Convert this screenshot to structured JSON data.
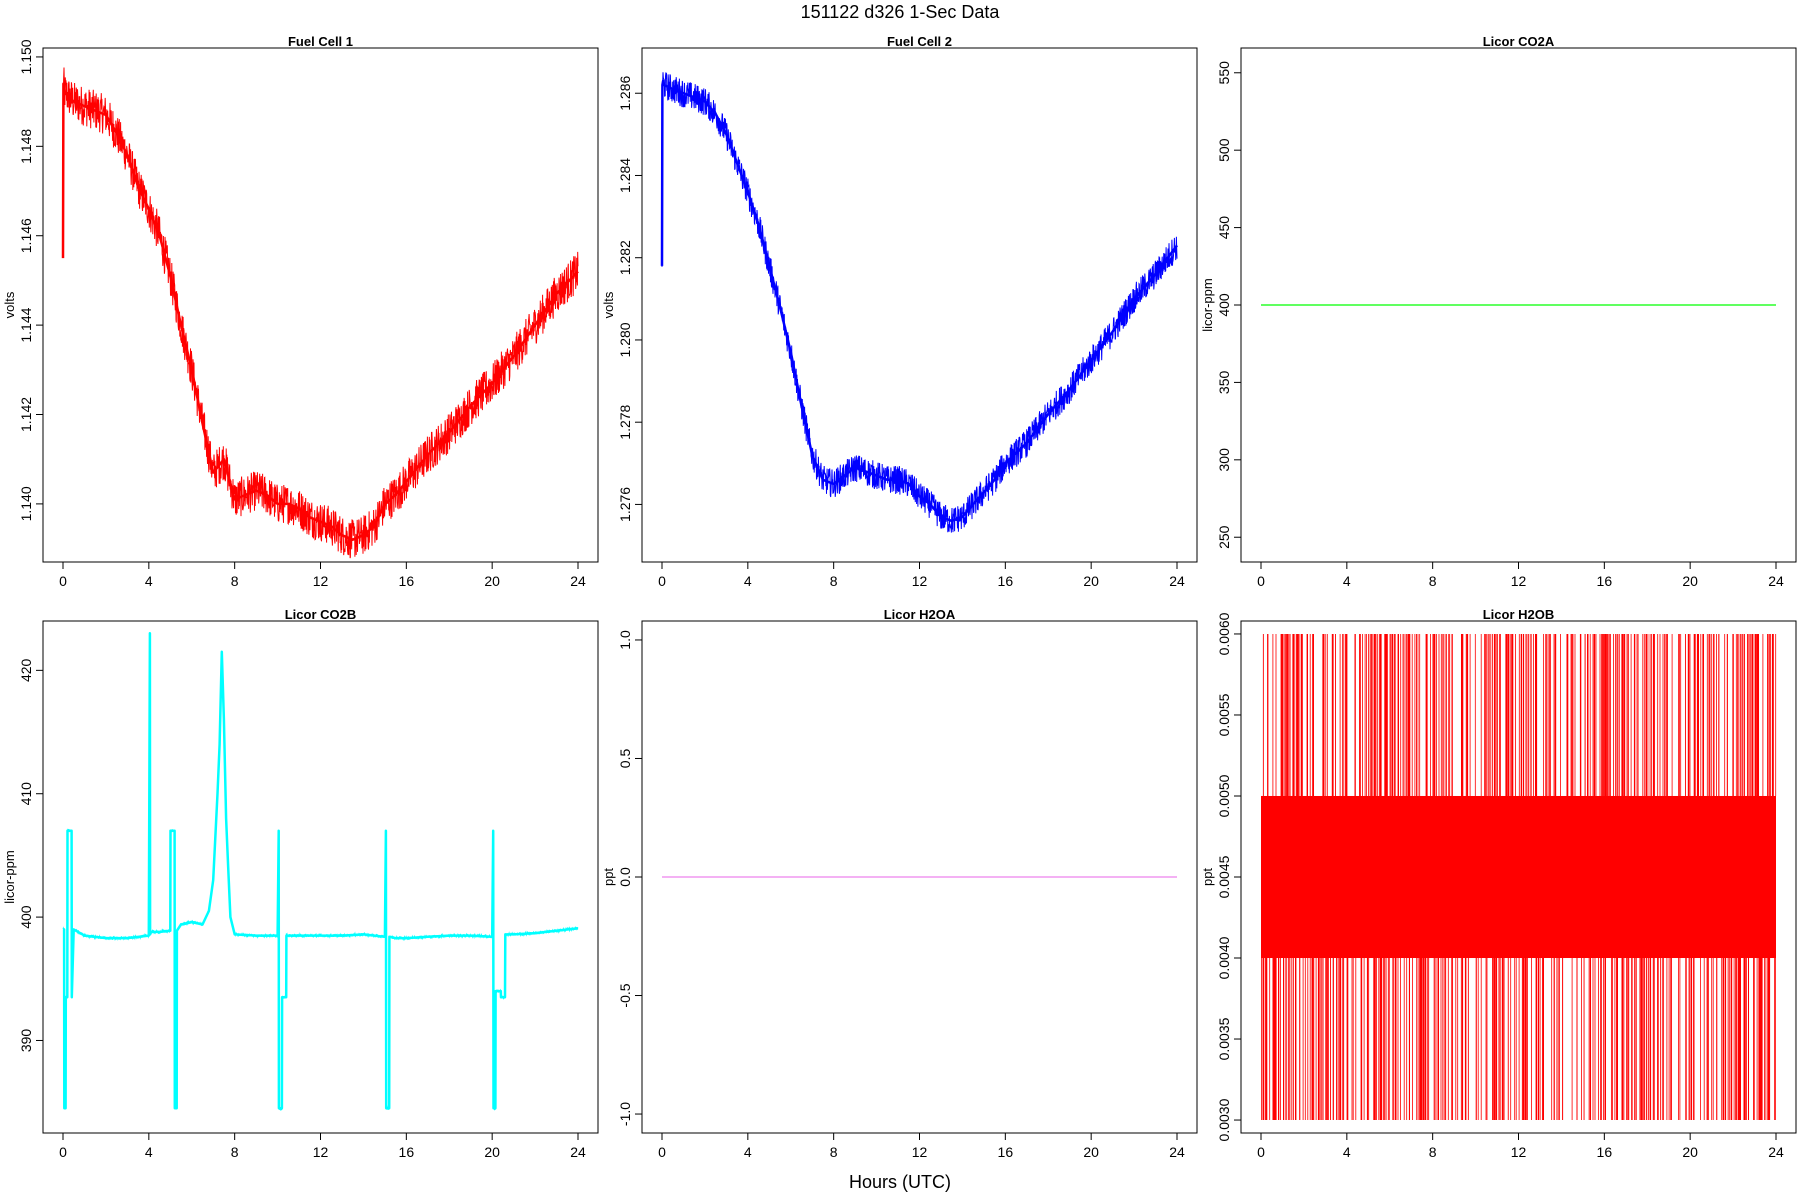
{
  "figure": {
    "title": "151122   d326   1-Sec Data",
    "xlabel": "Hours (UTC)"
  },
  "chart_data": [
    {
      "type": "line",
      "title": "Fuel Cell 1",
      "ylabel": "volts",
      "color": "#ff0000",
      "xlim": [
        0,
        24
      ],
      "ylim": [
        1.1387,
        1.1502
      ],
      "xticks": [
        0,
        4,
        8,
        12,
        16,
        20,
        24
      ],
      "yticks": [
        1.14,
        1.142,
        1.144,
        1.146,
        1.148,
        1.15
      ],
      "ytick_labels": [
        "1.140",
        "1.142",
        "1.144",
        "1.146",
        "1.148",
        "1.150"
      ],
      "noise": 0.00045,
      "series": [
        {
          "x": [
            0,
            0.02,
            0.05,
            0.1,
            0.5,
            1,
            1.5,
            2,
            2.5,
            3,
            3.5,
            4,
            4.5,
            5,
            5.5,
            6,
            6.5,
            7,
            7.5,
            8,
            8.5,
            9,
            9.5,
            10,
            10.5,
            11,
            11.5,
            12,
            12.5,
            13,
            13.5,
            14,
            14.5,
            15,
            15.5,
            16,
            17,
            18,
            19,
            20,
            21,
            22,
            23,
            24
          ],
          "y": [
            1.1455,
            1.1494,
            1.1493,
            1.1492,
            1.149,
            1.1489,
            1.1488,
            1.1487,
            1.1483,
            1.1478,
            1.1471,
            1.1466,
            1.146,
            1.1451,
            1.144,
            1.143,
            1.1418,
            1.1407,
            1.141,
            1.1401,
            1.1402,
            1.1403,
            1.1402,
            1.14,
            1.14,
            1.1399,
            1.1397,
            1.1396,
            1.1395,
            1.1393,
            1.1392,
            1.1393,
            1.1395,
            1.14,
            1.1402,
            1.1405,
            1.1411,
            1.1416,
            1.1422,
            1.1427,
            1.1433,
            1.144,
            1.1447,
            1.1452
          ]
        }
      ]
    },
    {
      "type": "line",
      "title": "Fuel Cell 2",
      "ylabel": "volts",
      "color": "#0000ff",
      "xlim": [
        0,
        24
      ],
      "ylim": [
        1.2746,
        1.2871
      ],
      "xticks": [
        0,
        4,
        8,
        12,
        16,
        20,
        24
      ],
      "yticks": [
        1.276,
        1.278,
        1.28,
        1.282,
        1.284,
        1.286
      ],
      "ytick_labels": [
        "1.276",
        "1.278",
        "1.280",
        "1.282",
        "1.284",
        "1.286"
      ],
      "noise": 0.00035,
      "series": [
        {
          "x": [
            0,
            0.02,
            0.05,
            0.1,
            0.5,
            1,
            1.5,
            2,
            2.5,
            3,
            3.5,
            4,
            4.5,
            5,
            5.5,
            6,
            6.5,
            7,
            7.5,
            8,
            8.5,
            9,
            9.5,
            10,
            10.5,
            11,
            11.5,
            12,
            12.5,
            13,
            13.5,
            14,
            14.5,
            15,
            15.5,
            16,
            17,
            18,
            19,
            20,
            21,
            22,
            23,
            24
          ],
          "y": [
            1.2818,
            1.2862,
            1.2863,
            1.2862,
            1.2861,
            1.286,
            1.2859,
            1.2858,
            1.2855,
            1.285,
            1.2843,
            1.2836,
            1.2828,
            1.2818,
            1.2808,
            1.2797,
            1.2784,
            1.2772,
            1.2766,
            1.2765,
            1.2767,
            1.2769,
            1.2768,
            1.2767,
            1.2766,
            1.2766,
            1.2765,
            1.2762,
            1.276,
            1.2757,
            1.2756,
            1.2757,
            1.276,
            1.2763,
            1.2766,
            1.277,
            1.2775,
            1.2782,
            1.2788,
            1.2795,
            1.2802,
            1.281,
            1.2816,
            1.2823
          ]
        }
      ]
    },
    {
      "type": "line",
      "title": "Licor CO2A",
      "ylabel": "licor-ppm",
      "color": "#00ff00",
      "xlim": [
        0,
        24
      ],
      "ylim": [
        234,
        566
      ],
      "xticks": [
        0,
        4,
        8,
        12,
        16,
        20,
        24
      ],
      "yticks": [
        250,
        300,
        350,
        400,
        450,
        500,
        550
      ],
      "ytick_labels": [
        "250",
        "300",
        "350",
        "400",
        "450",
        "500",
        "550"
      ],
      "noise": 0,
      "series": [
        {
          "x": [
            0,
            24
          ],
          "y": [
            400,
            400
          ]
        }
      ]
    },
    {
      "type": "line",
      "title": "Licor CO2B",
      "ylabel": "licor-ppm",
      "color": "#00ffff",
      "xlim": [
        0,
        24
      ],
      "ylim": [
        382.5,
        424
      ],
      "xticks": [
        0,
        4,
        8,
        12,
        16,
        20,
        24
      ],
      "yticks": [
        390,
        400,
        410,
        420
      ],
      "ytick_labels": [
        "390",
        "400",
        "410",
        "420"
      ],
      "noise": 0.12,
      "series": [
        {
          "x": [
            0,
            0.05,
            0.06,
            0.12,
            0.13,
            0.2,
            0.21,
            0.4,
            0.41,
            0.5,
            1,
            2,
            3,
            4,
            4.05,
            4.06,
            4.1,
            4.11,
            4.5,
            5,
            5.01,
            5.2,
            5.21,
            5.3,
            5.31,
            5.5,
            6,
            6.5,
            6.8,
            7,
            7.2,
            7.3,
            7.4,
            7.5,
            7.6,
            7.7,
            7.8,
            8,
            9,
            10,
            10.05,
            10.06,
            10.2,
            10.21,
            10.4,
            10.41,
            11,
            12,
            13,
            14,
            15,
            15.05,
            15.06,
            15.2,
            15.21,
            15.5,
            16,
            17,
            18,
            19,
            20,
            20.05,
            20.06,
            20.15,
            20.16,
            20.4,
            20.41,
            20.6,
            20.61,
            21,
            22,
            23,
            24
          ],
          "y": [
            399,
            399,
            384.5,
            384.5,
            393.5,
            393.5,
            407,
            407,
            393.5,
            399,
            398.5,
            398.3,
            398.3,
            398.5,
            423,
            398.6,
            398.8,
            398.8,
            398.8,
            398.9,
            407,
            407,
            384.5,
            384.5,
            398.9,
            399.4,
            399.6,
            399.4,
            400.5,
            403,
            410,
            414,
            421.5,
            416,
            408,
            404,
            400,
            398.6,
            398.5,
            398.5,
            407,
            384.5,
            384.5,
            393.5,
            393.5,
            398.5,
            398.5,
            398.5,
            398.5,
            398.6,
            398.4,
            407,
            384.5,
            384.5,
            398.4,
            398.3,
            398.3,
            398.4,
            398.5,
            398.5,
            398.4,
            407,
            384.5,
            384.5,
            394,
            394,
            393.5,
            393.5,
            398.6,
            398.6,
            398.7,
            398.9,
            399.1
          ]
        }
      ]
    },
    {
      "type": "line",
      "title": "Licor H2OA",
      "ylabel": "ppt",
      "color": "#ee82ee",
      "xlim": [
        0,
        24
      ],
      "ylim": [
        -1.08,
        1.08
      ],
      "xticks": [
        0,
        4,
        8,
        12,
        16,
        20,
        24
      ],
      "yticks": [
        -1.0,
        -0.5,
        0.0,
        0.5,
        1.0
      ],
      "ytick_labels": [
        "-1.0",
        "-0.5",
        "0.0",
        "0.5",
        "1.0"
      ],
      "noise": 0,
      "series": [
        {
          "x": [
            0,
            24
          ],
          "y": [
            0,
            0
          ]
        }
      ]
    },
    {
      "type": "area",
      "title": "Licor H2OB",
      "ylabel": "ppt",
      "color": "#ff0000",
      "xlim": [
        0,
        24
      ],
      "ylim": [
        0.00292,
        0.00608
      ],
      "xticks": [
        0,
        4,
        8,
        12,
        16,
        20,
        24
      ],
      "yticks": [
        0.003,
        0.0035,
        0.004,
        0.0045,
        0.005,
        0.0055,
        0.006
      ],
      "ytick_labels": [
        "0.0030",
        "0.0035",
        "0.0040",
        "0.0045",
        "0.0050",
        "0.0055",
        "0.0060"
      ],
      "band": {
        "low": 0.004,
        "high": 0.005,
        "x": [
          0,
          24
        ]
      },
      "spike_range": {
        "min": 0.003,
        "max": 0.006
      }
    }
  ]
}
